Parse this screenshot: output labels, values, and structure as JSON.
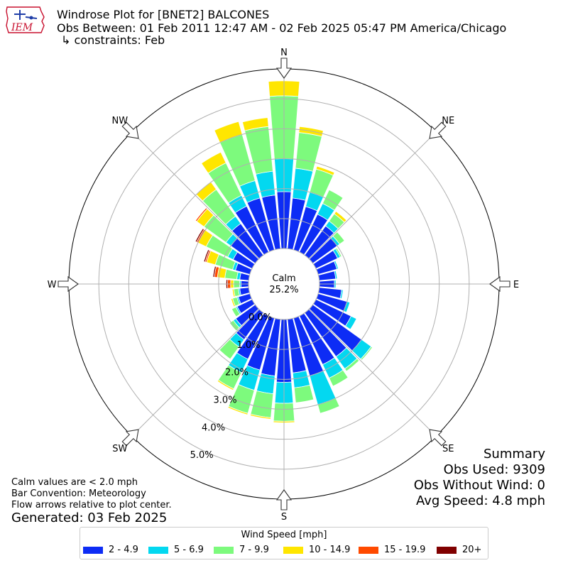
{
  "header": {
    "title": "Windrose Plot for [BNET2] BALCONES",
    "obs_between": "Obs Between: 01 Feb 2011 12:47 AM - 02 Feb 2025 05:47 PM America/Chicago",
    "constraints": "↳ constraints: Feb"
  },
  "logo": {
    "text": "IEM",
    "icon": "iem-logo-icon"
  },
  "summary": {
    "heading": "Summary",
    "obs_used": "Obs Used: 9309",
    "obs_without_wind": "Obs Without Wind: 0",
    "avg_speed": "Avg Speed: 4.8 mph"
  },
  "notes": {
    "calm": "Calm values are < 2.0 mph",
    "convention": "Bar Convention: Meteorology",
    "flow": "Flow arrows relative to plot center.",
    "generated": "Generated: 03 Feb 2025"
  },
  "legend": {
    "title": "Wind Speed [mph]",
    "items": [
      {
        "label": "2 - 4.9",
        "color": "#0d2cf5"
      },
      {
        "label": "5 - 6.9",
        "color": "#03d8f0"
      },
      {
        "label": "7 - 9.9",
        "color": "#7dfa7d"
      },
      {
        "label": "10 - 14.9",
        "color": "#ffe600"
      },
      {
        "label": "15 - 19.9",
        "color": "#ff4a00"
      },
      {
        "label": "20+",
        "color": "#800000"
      }
    ]
  },
  "chart_data": {
    "type": "windrose",
    "calm_label": "Calm",
    "calm_percent": "25.2%",
    "directions": [
      "N",
      "NW",
      "W",
      "SW",
      "S",
      "SE",
      "E",
      "NE"
    ],
    "radial_ticks": [
      0.0,
      1.0,
      2.0,
      3.0,
      4.0,
      5.0
    ],
    "radial_tick_labels": [
      "0.0%",
      "1.0%",
      "2.0%",
      "3.0%",
      "4.0%",
      "5.0%"
    ],
    "rmax": 6.0,
    "speed_bins": [
      "2 - 4.9",
      "5 - 6.9",
      "7 - 9.9",
      "10 - 14.9",
      "15 - 19.9",
      "20+"
    ],
    "direction_degrees": [
      0,
      10,
      20,
      30,
      40,
      50,
      60,
      70,
      80,
      90,
      100,
      110,
      120,
      130,
      140,
      150,
      160,
      170,
      180,
      190,
      200,
      210,
      220,
      230,
      240,
      250,
      260,
      270,
      280,
      290,
      300,
      310,
      320,
      330,
      340,
      350
    ],
    "cumulative_percent": [
      [
        1.9,
        3.0,
        5.1,
        5.6,
        0,
        0
      ],
      [
        1.7,
        2.7,
        3.9,
        4.1,
        0,
        0
      ],
      [
        1.5,
        2.0,
        2.8,
        2.9,
        0,
        0
      ],
      [
        1.4,
        1.8,
        2.3,
        2.3,
        0,
        0
      ],
      [
        1.2,
        1.4,
        1.7,
        1.8,
        0,
        0
      ],
      [
        1.0,
        1.1,
        1.3,
        1.3,
        0,
        0
      ],
      [
        0.8,
        0.9,
        0.95,
        0.95,
        0,
        0
      ],
      [
        0.65,
        0.7,
        0.7,
        0.7,
        0,
        0
      ],
      [
        0.55,
        0.6,
        0.6,
        0.6,
        0,
        0
      ],
      [
        0.5,
        0.55,
        0.55,
        0.55,
        0,
        0
      ],
      [
        0.75,
        0.8,
        0.8,
        0.8,
        0,
        0
      ],
      [
        1.0,
        1.1,
        1.1,
        1.1,
        0,
        0
      ],
      [
        1.3,
        1.5,
        1.5,
        1.5,
        0,
        0
      ],
      [
        2.0,
        2.4,
        2.45,
        2.45,
        0,
        0
      ],
      [
        1.8,
        2.3,
        2.4,
        2.4,
        0,
        0
      ],
      [
        1.8,
        2.3,
        2.6,
        2.6,
        0,
        0
      ],
      [
        2.0,
        3.0,
        3.3,
        3.3,
        0,
        0
      ],
      [
        1.8,
        2.3,
        2.8,
        2.8,
        0,
        0
      ],
      [
        2.1,
        2.8,
        3.4,
        3.45,
        0,
        0
      ],
      [
        1.9,
        2.5,
        3.3,
        3.35,
        0,
        0
      ],
      [
        1.8,
        2.5,
        3.3,
        3.35,
        0,
        0
      ],
      [
        1.6,
        2.1,
        2.7,
        2.75,
        0,
        0
      ],
      [
        1.1,
        1.4,
        1.9,
        1.9,
        0,
        0
      ],
      [
        0.8,
        0.9,
        1.05,
        1.05,
        0,
        0
      ],
      [
        0.55,
        0.6,
        0.75,
        0.75,
        0,
        0
      ],
      [
        0.4,
        0.45,
        0.6,
        0.65,
        0,
        0
      ],
      [
        0.3,
        0.35,
        0.5,
        0.55,
        0,
        0
      ],
      [
        0.25,
        0.3,
        0.5,
        0.6,
        0.7,
        0.75
      ],
      [
        0.3,
        0.4,
        0.8,
        1.05,
        1.15,
        1.2
      ],
      [
        0.5,
        0.6,
        1.2,
        1.5,
        1.55,
        1.6
      ],
      [
        0.7,
        0.9,
        1.7,
        2.0,
        2.05,
        2.1
      ],
      [
        1.0,
        1.2,
        2.1,
        2.4,
        2.45,
        2.45
      ],
      [
        1.3,
        1.6,
        2.7,
        3.0,
        3.0,
        3.0
      ],
      [
        1.7,
        2.1,
        3.3,
        3.7,
        3.7,
        3.7
      ],
      [
        1.8,
        2.4,
        4.0,
        4.45,
        4.45,
        4.45
      ],
      [
        1.8,
        2.6,
        4.1,
        4.4,
        4.4,
        4.4
      ]
    ]
  }
}
